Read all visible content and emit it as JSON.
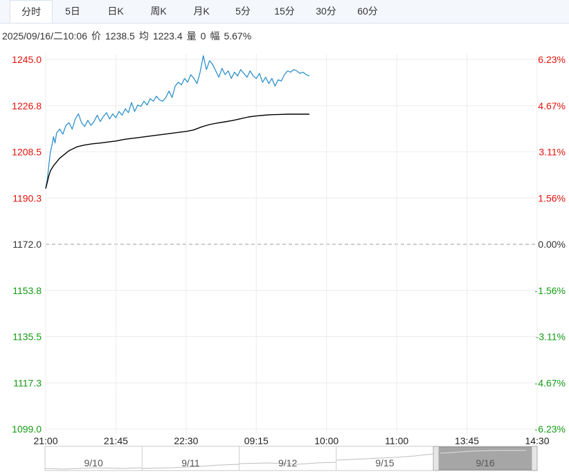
{
  "tabs": [
    {
      "label": "分时",
      "active": true
    },
    {
      "label": "5日",
      "active": false
    },
    {
      "label": "日K",
      "active": false
    },
    {
      "label": "周K",
      "active": false
    },
    {
      "label": "月K",
      "active": false
    },
    {
      "label": "5分",
      "active": false
    },
    {
      "label": "15分",
      "active": false
    },
    {
      "label": "30分",
      "active": false
    },
    {
      "label": "60分",
      "active": false
    }
  ],
  "info": {
    "datetime": "2025/09/16/二10:06",
    "price_label": "价",
    "price": "1238.5",
    "avg_label": "均",
    "avg": "1223.4",
    "volume_label": "量",
    "volume": "0",
    "change_label": "幅",
    "change": "5.67%"
  },
  "colors": {
    "up": "#e3120b",
    "down": "#129a12",
    "flat": "#333333",
    "price_line": "#1f88c8",
    "avg_line": "#000000",
    "grid": "#ececec",
    "navigator_bg": "#a6a6a6"
  },
  "chart_data": {
    "type": "line",
    "prev_close": 1172.0,
    "ylim": [
      1099.0,
      1245.0
    ],
    "y_ticks": [
      "1245.0",
      "1226.8",
      "1208.5",
      "1190.3",
      "1172.0",
      "1153.8",
      "1135.5",
      "1117.3",
      "1099.0"
    ],
    "pct_ticks": [
      "6.23%",
      "4.67%",
      "3.11%",
      "1.56%",
      "0.00%",
      "-1.56%",
      "-3.11%",
      "-4.67%",
      "-6.23%"
    ],
    "x_ticks": [
      "21:00",
      "21:45",
      "22:30",
      "09:15",
      "10:00",
      "11:00",
      "13:45",
      "14:30"
    ],
    "x_tick_index": [
      0,
      45,
      90,
      135,
      180,
      225,
      270,
      315
    ],
    "series": [
      {
        "key": "price",
        "x": [
          0,
          1,
          2,
          3,
          4,
          5,
          6,
          7,
          9,
          11,
          13,
          15,
          17,
          19,
          21,
          23,
          25,
          27,
          29,
          31,
          33,
          35,
          37,
          39,
          41,
          43,
          45,
          47,
          49,
          51,
          53,
          55,
          57,
          59,
          61,
          63,
          65,
          67,
          69,
          71,
          73,
          75,
          77,
          79,
          81,
          83,
          85,
          87,
          89,
          91,
          93,
          95,
          97,
          99,
          101,
          103,
          105,
          107,
          109,
          111,
          113,
          115,
          117,
          119,
          121,
          123,
          125,
          127,
          129,
          131,
          133,
          135,
          137,
          139,
          141,
          143,
          145,
          147,
          149,
          151,
          153,
          155,
          157,
          159,
          161,
          163,
          165,
          167,
          169
        ],
        "values": [
          1194.0,
          1197.5,
          1203.0,
          1208.5,
          1211.0,
          1214.5,
          1212.0,
          1216.0,
          1217.5,
          1215.5,
          1219.0,
          1220.0,
          1217.5,
          1221.5,
          1223.5,
          1220.0,
          1218.5,
          1221.0,
          1219.0,
          1220.5,
          1223.0,
          1220.5,
          1222.5,
          1224.0,
          1221.5,
          1223.5,
          1222.0,
          1224.5,
          1223.0,
          1225.5,
          1224.0,
          1228.0,
          1224.5,
          1227.0,
          1226.5,
          1228.5,
          1227.0,
          1229.5,
          1228.5,
          1230.5,
          1229.0,
          1228.5,
          1230.0,
          1232.5,
          1230.0,
          1234.5,
          1236.0,
          1235.0,
          1237.5,
          1236.0,
          1239.0,
          1237.5,
          1235.5,
          1240.0,
          1246.5,
          1241.0,
          1244.5,
          1243.0,
          1240.5,
          1238.0,
          1241.5,
          1239.0,
          1240.5,
          1237.5,
          1240.0,
          1238.5,
          1241.0,
          1239.5,
          1238.0,
          1240.5,
          1238.5,
          1237.5,
          1239.5,
          1236.0,
          1238.0,
          1235.5,
          1237.5,
          1234.5,
          1237.0,
          1236.5,
          1239.0,
          1240.5,
          1240.0,
          1241.0,
          1240.5,
          1239.5,
          1240.0,
          1239.0,
          1238.5
        ]
      },
      {
        "key": "avg",
        "x": [
          0,
          1,
          2,
          3,
          5,
          7,
          9,
          12,
          15,
          20,
          25,
          30,
          35,
          40,
          45,
          50,
          55,
          60,
          65,
          70,
          75,
          80,
          85,
          90,
          95,
          100,
          105,
          110,
          115,
          120,
          125,
          130,
          135,
          140,
          145,
          150,
          155,
          160,
          165,
          169
        ],
        "values": [
          1194.0,
          1196.5,
          1199.0,
          1201.0,
          1203.0,
          1204.5,
          1206.0,
          1207.5,
          1209.0,
          1210.5,
          1211.2,
          1211.7,
          1212.0,
          1212.4,
          1212.8,
          1213.4,
          1213.8,
          1214.2,
          1214.6,
          1215.0,
          1215.4,
          1215.8,
          1216.2,
          1216.6,
          1217.2,
          1218.4,
          1219.3,
          1219.9,
          1220.4,
          1220.9,
          1221.6,
          1222.3,
          1222.7,
          1223.0,
          1223.2,
          1223.3,
          1223.4,
          1223.4,
          1223.4,
          1223.4
        ]
      }
    ],
    "navigator": {
      "labels": [
        "9/10",
        "9/11",
        "9/12",
        "9/15",
        "9/16"
      ],
      "selected": "9/16"
    }
  }
}
